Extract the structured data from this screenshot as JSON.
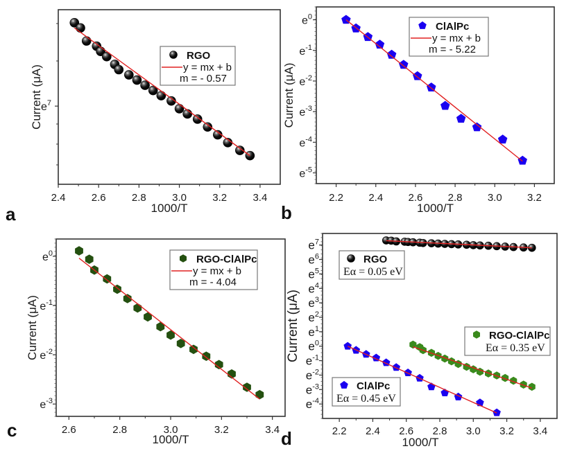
{
  "figure": {
    "panels": [
      "a",
      "b",
      "c",
      "d"
    ]
  },
  "colors": {
    "rgo": "#0a0a0a",
    "cialpc": "#1a00f0",
    "rgo_cialpc_c": "#245010",
    "rgo_cialpc_d": "#3a8a1c",
    "fit_line": "#e02020"
  },
  "chart_data": [
    {
      "panel": "a",
      "type": "scatter",
      "title": "",
      "xlabel": "1000/T",
      "ylabel": "Current (μA)",
      "yscale": "ln",
      "xlim": [
        2.4,
        3.5
      ],
      "ylim_ln": [
        6.7,
        7.37
      ],
      "xticks": [
        "2.4",
        "2.6",
        "2.8",
        "3.0",
        "3.2",
        "3.4"
      ],
      "xtick_values": [
        2.4,
        2.6,
        2.8,
        3.0,
        3.2,
        3.4
      ],
      "yticks": [
        {
          "label_base": "e",
          "exp": "7",
          "value_ln": 7
        }
      ],
      "legend": {
        "position": "upper-right-center",
        "entries": [
          "RGO",
          "y = mx + b",
          "m = - 0.57"
        ]
      },
      "series": [
        {
          "name": "RGO",
          "marker": "sphere",
          "color": "#0a0a0a",
          "x": [
            2.48,
            2.51,
            2.54,
            2.59,
            2.61,
            2.64,
            2.68,
            2.7,
            2.75,
            2.79,
            2.83,
            2.87,
            2.91,
            2.96,
            3.0,
            3.04,
            3.09,
            3.14,
            3.19,
            3.24,
            3.3,
            3.35
          ],
          "ln_y": [
            7.32,
            7.3,
            7.25,
            7.23,
            7.21,
            7.19,
            7.16,
            7.14,
            7.12,
            7.1,
            7.08,
            7.06,
            7.04,
            7.02,
            6.99,
            6.97,
            6.95,
            6.92,
            6.89,
            6.86,
            6.83,
            6.81
          ]
        }
      ],
      "fit": {
        "label": "y = mx + b",
        "slope": -0.57,
        "x_range": [
          2.48,
          3.35
        ],
        "ln_y_range": [
          7.3,
          6.81
        ]
      }
    },
    {
      "panel": "b",
      "type": "scatter",
      "title": "",
      "xlabel": "1000/T",
      "ylabel": "Current (μA)",
      "yscale": "ln",
      "xlim": [
        2.1,
        3.3
      ],
      "ylim_ln": [
        -5.35,
        0.42
      ],
      "xticks": [
        "2.2",
        "2.4",
        "2.6",
        "2.8",
        "3.0",
        "3.2"
      ],
      "xtick_values": [
        2.2,
        2.4,
        2.6,
        2.8,
        3.0,
        3.2
      ],
      "yticks": [
        {
          "label_base": "e",
          "exp": "0",
          "value_ln": 0
        },
        {
          "label_base": "e",
          "exp": "-1",
          "value_ln": -1
        },
        {
          "label_base": "e",
          "exp": "-2",
          "value_ln": -2
        },
        {
          "label_base": "e",
          "exp": "-3",
          "value_ln": -3
        },
        {
          "label_base": "e",
          "exp": "-4",
          "value_ln": -4
        },
        {
          "label_base": "e",
          "exp": "-5",
          "value_ln": -5
        }
      ],
      "legend": {
        "position": "upper-center",
        "entries": [
          "ClAlPc",
          "y = mx + b",
          "m = - 5.22"
        ]
      },
      "series": [
        {
          "name": "ClAlPc",
          "marker": "pentagon",
          "color": "#1a00f0",
          "x": [
            2.25,
            2.3,
            2.36,
            2.42,
            2.48,
            2.54,
            2.61,
            2.68,
            2.75,
            2.83,
            2.91,
            3.04,
            3.14
          ],
          "ln_y": [
            0.0,
            -0.28,
            -0.56,
            -0.81,
            -1.14,
            -1.47,
            -1.84,
            -2.21,
            -2.81,
            -3.23,
            -3.51,
            -3.91,
            -4.6
          ]
        }
      ],
      "fit": {
        "label": "y = mx + b",
        "slope": -5.22,
        "x_range": [
          2.25,
          3.14
        ],
        "ln_y_range": [
          0.0,
          -4.62
        ]
      }
    },
    {
      "panel": "c",
      "type": "scatter",
      "title": "",
      "xlabel": "1000/T",
      "ylabel": "Current (μA)",
      "yscale": "ln",
      "xlim": [
        2.55,
        3.45
      ],
      "ylim_ln": [
        -3.25,
        0.35
      ],
      "xticks": [
        "2.6",
        "2.8",
        "3.0",
        "3.2",
        "3.4"
      ],
      "xtick_values": [
        2.6,
        2.8,
        3.0,
        3.2,
        3.4
      ],
      "yticks": [
        {
          "label_base": "e",
          "exp": "0",
          "value_ln": 0
        },
        {
          "label_base": "e",
          "exp": "-1",
          "value_ln": -1
        },
        {
          "label_base": "e",
          "exp": "-2",
          "value_ln": -2
        },
        {
          "label_base": "e",
          "exp": "-3",
          "value_ln": -3
        }
      ],
      "legend": {
        "position": "upper-right",
        "entries": [
          "RGO-ClAlPc",
          "y = mx + b",
          "m = - 4.04"
        ]
      },
      "series": [
        {
          "name": "RGO-ClAlPc",
          "marker": "hexagon",
          "color": "#245010",
          "x": [
            2.64,
            2.68,
            2.7,
            2.75,
            2.79,
            2.83,
            2.87,
            2.91,
            2.96,
            3.0,
            3.04,
            3.09,
            3.14,
            3.19,
            3.24,
            3.3,
            3.35
          ],
          "ln_y": [
            0.11,
            -0.06,
            -0.28,
            -0.46,
            -0.67,
            -0.86,
            -1.05,
            -1.23,
            -1.43,
            -1.6,
            -1.77,
            -1.89,
            -2.03,
            -2.2,
            -2.39,
            -2.66,
            -2.81
          ]
        }
      ],
      "fit": {
        "label": "y = mx + b",
        "slope": -4.04,
        "x_range": [
          2.64,
          3.35
        ],
        "ln_y_range": [
          -0.04,
          -2.9
        ]
      }
    },
    {
      "panel": "d",
      "type": "scatter",
      "title": "",
      "xlabel": "1000/T",
      "ylabel": "Current (μA)",
      "yscale": "ln",
      "xlim": [
        2.1,
        3.5
      ],
      "ylim_ln": [
        -5.0,
        7.8
      ],
      "xticks": [
        "2.2",
        "2.4",
        "2.6",
        "2.8",
        "3.0",
        "3.2",
        "3.4"
      ],
      "xtick_values": [
        2.2,
        2.4,
        2.6,
        2.8,
        3.0,
        3.2,
        3.4
      ],
      "yticks": [
        {
          "label_base": "e",
          "exp": "7",
          "value_ln": 7
        },
        {
          "label_base": "e",
          "exp": "6",
          "value_ln": 6
        },
        {
          "label_base": "e",
          "exp": "5",
          "value_ln": 5
        },
        {
          "label_base": "e",
          "exp": "4",
          "value_ln": 4
        },
        {
          "label_base": "e",
          "exp": "3",
          "value_ln": 3
        },
        {
          "label_base": "e",
          "exp": "2",
          "value_ln": 2
        },
        {
          "label_base": "e",
          "exp": "1",
          "value_ln": 1
        },
        {
          "label_base": "e",
          "exp": "0",
          "value_ln": 0
        },
        {
          "label_base": "e",
          "exp": "-1",
          "value_ln": -1
        },
        {
          "label_base": "e",
          "exp": "-2",
          "value_ln": -2
        },
        {
          "label_base": "e",
          "exp": "-3",
          "value_ln": -3
        },
        {
          "label_base": "e",
          "exp": "-4",
          "value_ln": -4
        }
      ],
      "legends": [
        {
          "series": "RGO",
          "title": "RGO",
          "text": "Eα = 0.05 eV",
          "position": "upper-left"
        },
        {
          "series": "RGO-ClAlPc",
          "title": "RGO-ClAlPc",
          "text": "Eα = 0.35 eV",
          "position": "middle-right"
        },
        {
          "series": "ClAlPc",
          "title": "ClAlPc",
          "text": "Eα = 0.45 eV",
          "position": "lower-left"
        }
      ],
      "series": [
        {
          "name": "RGO",
          "marker": "sphere",
          "color": "#0a0a0a",
          "x": [
            2.48,
            2.51,
            2.54,
            2.59,
            2.61,
            2.64,
            2.68,
            2.7,
            2.75,
            2.79,
            2.83,
            2.87,
            2.91,
            2.96,
            3.0,
            3.04,
            3.09,
            3.14,
            3.19,
            3.24,
            3.3,
            3.35
          ],
          "ln_y": [
            7.32,
            7.3,
            7.25,
            7.23,
            7.21,
            7.19,
            7.16,
            7.14,
            7.12,
            7.1,
            7.08,
            7.06,
            7.04,
            7.02,
            6.99,
            6.97,
            6.95,
            6.92,
            6.89,
            6.86,
            6.83,
            6.81
          ],
          "fit_ln_y_range": [
            7.3,
            6.81
          ],
          "fit_x_range": [
            2.48,
            3.35
          ]
        },
        {
          "name": "ClAlPc",
          "marker": "pentagon",
          "color": "#1a00f0",
          "x": [
            2.25,
            2.3,
            2.36,
            2.42,
            2.48,
            2.54,
            2.61,
            2.68,
            2.75,
            2.83,
            2.91,
            3.04,
            3.14
          ],
          "ln_y": [
            0.0,
            -0.28,
            -0.56,
            -0.81,
            -1.14,
            -1.47,
            -1.84,
            -2.21,
            -2.81,
            -3.23,
            -3.51,
            -3.91,
            -4.6
          ],
          "fit_ln_y_range": [
            0.0,
            -4.62
          ],
          "fit_x_range": [
            2.25,
            3.14
          ]
        },
        {
          "name": "RGO-ClAlPc",
          "marker": "hexagon",
          "color": "#3a8a1c",
          "x": [
            2.64,
            2.68,
            2.7,
            2.75,
            2.79,
            2.83,
            2.87,
            2.91,
            2.96,
            3.0,
            3.04,
            3.09,
            3.14,
            3.19,
            3.24,
            3.3,
            3.35
          ],
          "ln_y": [
            0.11,
            -0.06,
            -0.28,
            -0.46,
            -0.67,
            -0.86,
            -1.05,
            -1.23,
            -1.43,
            -1.6,
            -1.77,
            -1.89,
            -2.03,
            -2.2,
            -2.39,
            -2.66,
            -2.81
          ],
          "fit_ln_y_range": [
            -0.04,
            -2.9
          ],
          "fit_x_range": [
            2.64,
            3.35
          ]
        }
      ]
    }
  ]
}
